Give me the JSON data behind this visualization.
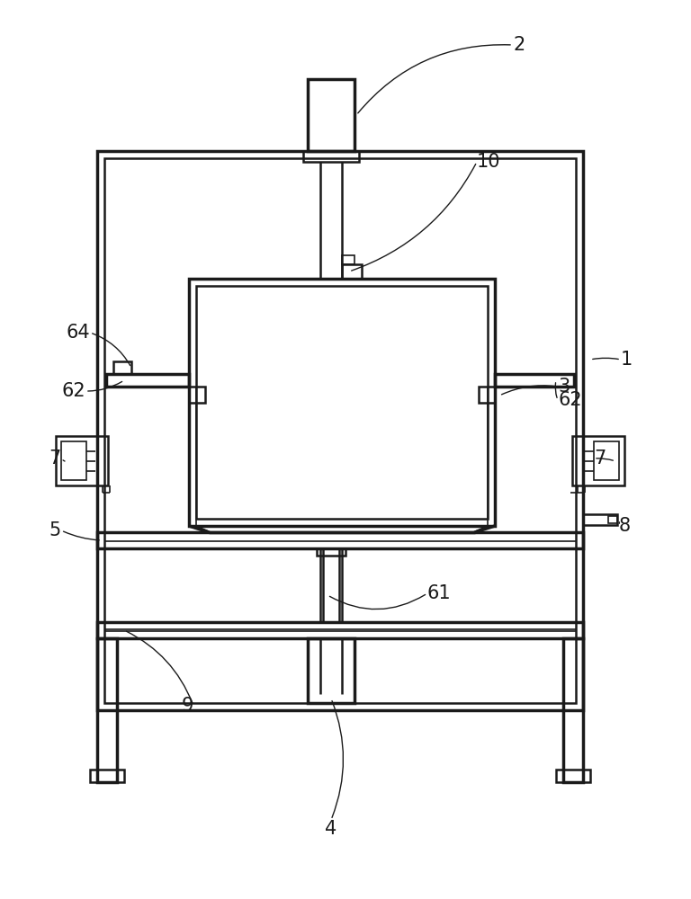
{
  "bg_color": "#ffffff",
  "line_color": "#1a1a1a",
  "lw_thin": 1.2,
  "lw_med": 1.8,
  "lw_thick": 2.5,
  "fig_width": 7.68,
  "fig_height": 10.0
}
